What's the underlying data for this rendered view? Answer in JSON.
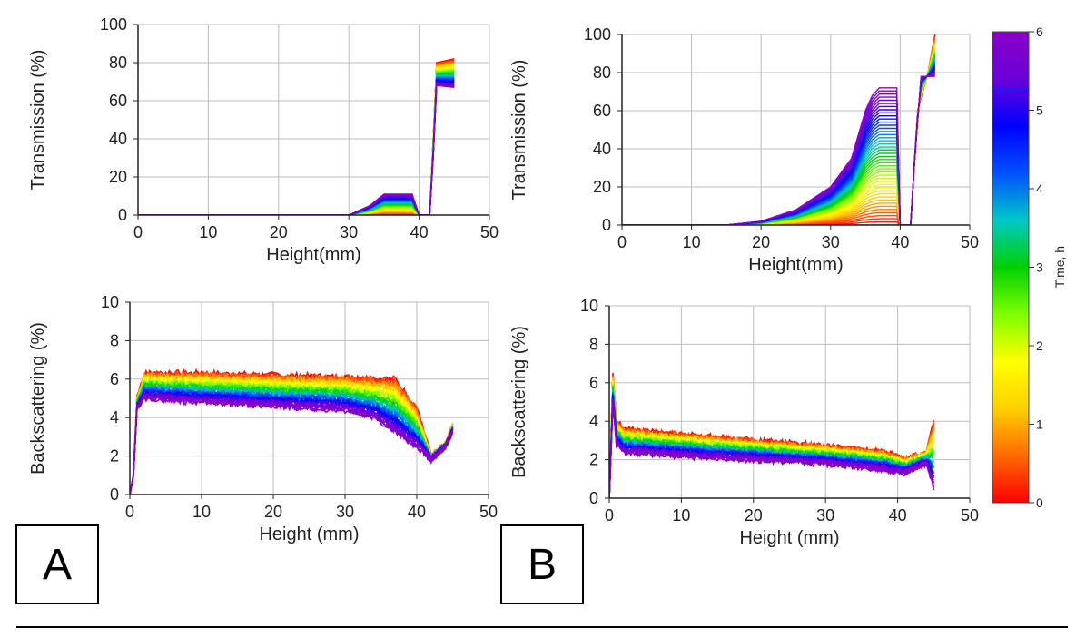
{
  "panels": [
    {
      "label": "A"
    },
    {
      "label": "B"
    }
  ],
  "colorbar": {
    "label": "Time, h",
    "ticks": [
      "0",
      "1",
      "2",
      "3",
      "4",
      "5",
      "6"
    ],
    "range": [
      0,
      6
    ],
    "colors": [
      "#ff0000",
      "#ff6a00",
      "#ffd000",
      "#ffff00",
      "#7fff00",
      "#00d000",
      "#00c8c8",
      "#0050ff",
      "#0000ff",
      "#6a00d8",
      "#8a00c8"
    ]
  },
  "chart_data": [
    {
      "panel": "A",
      "type": "line",
      "xlabel": "Height(mm)",
      "ylabel": "Transmission (%)",
      "xlim": [
        0,
        50
      ],
      "ylim": [
        0,
        100
      ],
      "xticks": [
        "0",
        "10",
        "20",
        "30",
        "40",
        "50"
      ],
      "yticks": [
        "0",
        "20",
        "40",
        "60",
        "80",
        "100"
      ],
      "grid": true,
      "series": [
        {
          "time_h": 6,
          "x": [
            0,
            30,
            33,
            35,
            39,
            40,
            41.5,
            42,
            42.5,
            45
          ],
          "y": [
            0,
            0,
            5,
            11,
            11,
            0,
            0,
            30,
            68,
            67
          ]
        },
        {
          "time_h": 0,
          "x": [
            0,
            30,
            41.5,
            42,
            42.5,
            45
          ],
          "y": [
            0,
            0,
            0,
            40,
            80,
            82
          ]
        }
      ]
    },
    {
      "panel": "A",
      "type": "line",
      "xlabel": "Height (mm)",
      "ylabel": "Backscattering (%)",
      "xlim": [
        0,
        50
      ],
      "ylim": [
        0,
        10
      ],
      "xticks": [
        "0",
        "10",
        "20",
        "30",
        "40",
        "50"
      ],
      "yticks": [
        "0",
        "2",
        "4",
        "6",
        "8",
        "10"
      ],
      "grid": true,
      "series": [
        {
          "time_h": 0,
          "x": [
            0,
            0.5,
            1,
            2,
            10,
            20,
            30,
            37,
            40,
            42,
            44,
            45
          ],
          "y": [
            0,
            1,
            5,
            6.3,
            6.3,
            6.2,
            6.1,
            6.0,
            4.5,
            2,
            2.6,
            3.6
          ]
        },
        {
          "time_h": 6,
          "x": [
            0,
            0.5,
            1,
            2,
            10,
            20,
            30,
            34,
            38,
            41,
            42,
            44,
            45
          ],
          "y": [
            0,
            1,
            4.5,
            5,
            4.8,
            4.6,
            4.4,
            4.0,
            3.0,
            2.2,
            1.8,
            2.5,
            3.3
          ]
        }
      ]
    },
    {
      "panel": "B",
      "type": "line",
      "xlabel": "Height(mm)",
      "ylabel": "Transmission (%)",
      "xlim": [
        0,
        50
      ],
      "ylim": [
        0,
        100
      ],
      "xticks": [
        "0",
        "10",
        "20",
        "30",
        "40",
        "50"
      ],
      "yticks": [
        "0",
        "20",
        "40",
        "60",
        "80",
        "100"
      ],
      "grid": true,
      "series": [
        {
          "time_h": 6,
          "x": [
            0,
            15,
            20,
            25,
            30,
            33,
            35,
            36,
            37,
            39.5,
            40,
            41.5,
            42,
            43,
            45
          ],
          "y": [
            0,
            0,
            2,
            8,
            20,
            35,
            60,
            68,
            72,
            72,
            0,
            0,
            30,
            78,
            78
          ]
        },
        {
          "time_h": 0,
          "x": [
            0,
            15,
            35,
            40,
            41.5,
            42.5,
            44,
            45
          ],
          "y": [
            0,
            0,
            0,
            0,
            0,
            60,
            80,
            100
          ]
        }
      ]
    },
    {
      "panel": "B",
      "type": "line",
      "xlabel": "Height (mm)",
      "ylabel": "Backscattering (%)",
      "xlim": [
        0,
        50
      ],
      "ylim": [
        0,
        10
      ],
      "xticks": [
        "0",
        "10",
        "20",
        "30",
        "40",
        "50"
      ],
      "yticks": [
        "0",
        "2",
        "4",
        "6",
        "8",
        "10"
      ],
      "grid": true,
      "series": [
        {
          "time_h": 0,
          "x": [
            0,
            0.5,
            1,
            2,
            10,
            20,
            30,
            38,
            41,
            44,
            45
          ],
          "y": [
            0,
            6.5,
            4,
            3.6,
            3.3,
            3.0,
            2.7,
            2.4,
            2.0,
            2.4,
            4
          ]
        },
        {
          "time_h": 6,
          "x": [
            0,
            0.5,
            1,
            2,
            10,
            20,
            30,
            38,
            41,
            44,
            45
          ],
          "y": [
            0,
            5,
            2.8,
            2.4,
            2.2,
            2.0,
            1.8,
            1.5,
            1.3,
            1.8,
            0.5
          ]
        }
      ]
    }
  ]
}
